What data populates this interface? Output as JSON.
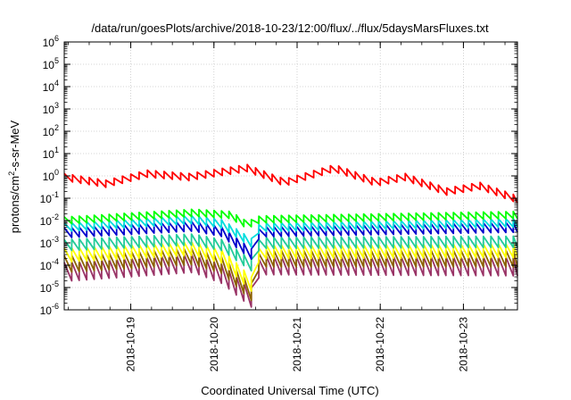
{
  "chart_data": {
    "type": "line",
    "title": "/data/run/goesPlots/archive/2018-10-23/12:00/flux/../flux/5daysMarsFluxes.txt",
    "ylabel": {
      "base": "protons/cm",
      "sup": "2",
      "rest": "-s-sr-MeV"
    },
    "xlabel": "Coordinated Universal Time (UTC)",
    "y_scale": "log",
    "ylim": [
      1e-06,
      1000000.0
    ],
    "y_ticks": [
      {
        "base": "10",
        "exp": "-6",
        "value": 1e-06
      },
      {
        "base": "10",
        "exp": "-5",
        "value": 1e-05
      },
      {
        "base": "10",
        "exp": "-4",
        "value": 0.0001
      },
      {
        "base": "10",
        "exp": "-3",
        "value": 0.001
      },
      {
        "base": "10",
        "exp": "-2",
        "value": 0.01
      },
      {
        "base": "10",
        "exp": "-1",
        "value": 0.1
      },
      {
        "base": "10",
        "exp": "0",
        "value": 1
      },
      {
        "base": "10",
        "exp": "1",
        "value": 10.0
      },
      {
        "base": "10",
        "exp": "2",
        "value": 100.0
      },
      {
        "base": "10",
        "exp": "3",
        "value": 1000.0
      },
      {
        "base": "10",
        "exp": "4",
        "value": 10000.0
      },
      {
        "base": "10",
        "exp": "5",
        "value": 100000.0
      },
      {
        "base": "10",
        "exp": "6",
        "value": 1000000.0
      }
    ],
    "xlim": [
      0,
      5.45
    ],
    "x_ticks": [
      {
        "label": "2018-10-19",
        "value": 0.8
      },
      {
        "label": "2018-10-20",
        "value": 1.8
      },
      {
        "label": "2018-10-21",
        "value": 2.8
      },
      {
        "label": "2018-10-22",
        "value": 3.8
      },
      {
        "label": "2018-10-23",
        "value": 4.8
      }
    ],
    "grid": true,
    "series": [
      {
        "color": "#ff0000",
        "period": 0.1,
        "amp": 0.32,
        "base": [
          [
            0,
            -0.05
          ],
          [
            0.5,
            -0.35
          ],
          [
            1.0,
            0.1
          ],
          [
            1.5,
            -0.05
          ],
          [
            2.2,
            0.35
          ],
          [
            2.65,
            -0.3
          ],
          [
            3.25,
            0.35
          ],
          [
            3.75,
            -0.3
          ],
          [
            4.1,
            -0.05
          ],
          [
            4.6,
            -0.7
          ],
          [
            5.0,
            -0.45
          ],
          [
            5.45,
            -1.05
          ]
        ]
      },
      {
        "color": "#00ff00",
        "period": 0.09,
        "amp": 0.32,
        "base": [
          [
            0,
            -2.0
          ],
          [
            1.55,
            -1.65
          ],
          [
            2.0,
            -1.75
          ],
          [
            2.2,
            -2.2
          ],
          [
            2.35,
            -1.95
          ],
          [
            5.45,
            -1.75
          ]
        ]
      },
      {
        "color": "#00dddd",
        "period": 0.09,
        "amp": 0.38,
        "base": [
          [
            0,
            -2.3
          ],
          [
            1.55,
            -1.95
          ],
          [
            1.9,
            -2.15
          ],
          [
            2.25,
            -3.0
          ],
          [
            2.35,
            -2.3
          ],
          [
            5.45,
            -2.1
          ]
        ]
      },
      {
        "color": "#0000cc",
        "period": 0.09,
        "amp": 0.45,
        "base": [
          [
            0,
            -2.55
          ],
          [
            1.55,
            -2.25
          ],
          [
            1.9,
            -2.5
          ],
          [
            2.25,
            -3.5
          ],
          [
            2.35,
            -2.5
          ],
          [
            5.45,
            -2.3
          ]
        ]
      },
      {
        "color": "#22cc99",
        "period": 0.09,
        "amp": 0.5,
        "base": [
          [
            0,
            -3.1
          ],
          [
            1.55,
            -2.85
          ],
          [
            1.9,
            -3.1
          ],
          [
            2.25,
            -4.0
          ],
          [
            2.35,
            -3.0
          ],
          [
            5.45,
            -2.95
          ]
        ]
      },
      {
        "color": "#ffff00",
        "period": 0.09,
        "amp": 0.62,
        "base": [
          [
            0,
            -3.55
          ],
          [
            1.55,
            -3.25
          ],
          [
            1.9,
            -3.6
          ],
          [
            2.25,
            -4.85
          ],
          [
            2.35,
            -3.4
          ],
          [
            5.45,
            -3.35
          ]
        ]
      },
      {
        "color": "#8b6200",
        "period": 0.09,
        "amp": 0.75,
        "base": [
          [
            0,
            -3.95
          ],
          [
            1.55,
            -3.6
          ],
          [
            1.9,
            -4.0
          ],
          [
            2.25,
            -5.2
          ],
          [
            2.35,
            -3.7
          ],
          [
            5.45,
            -3.7
          ]
        ]
      },
      {
        "color": "#993366",
        "period": 0.09,
        "amp": 0.85,
        "base": [
          [
            0,
            -4.3
          ],
          [
            1.55,
            -3.9
          ],
          [
            1.9,
            -4.4
          ],
          [
            2.25,
            -5.45
          ],
          [
            2.35,
            -4.0
          ],
          [
            5.45,
            -4.05
          ]
        ]
      }
    ]
  }
}
